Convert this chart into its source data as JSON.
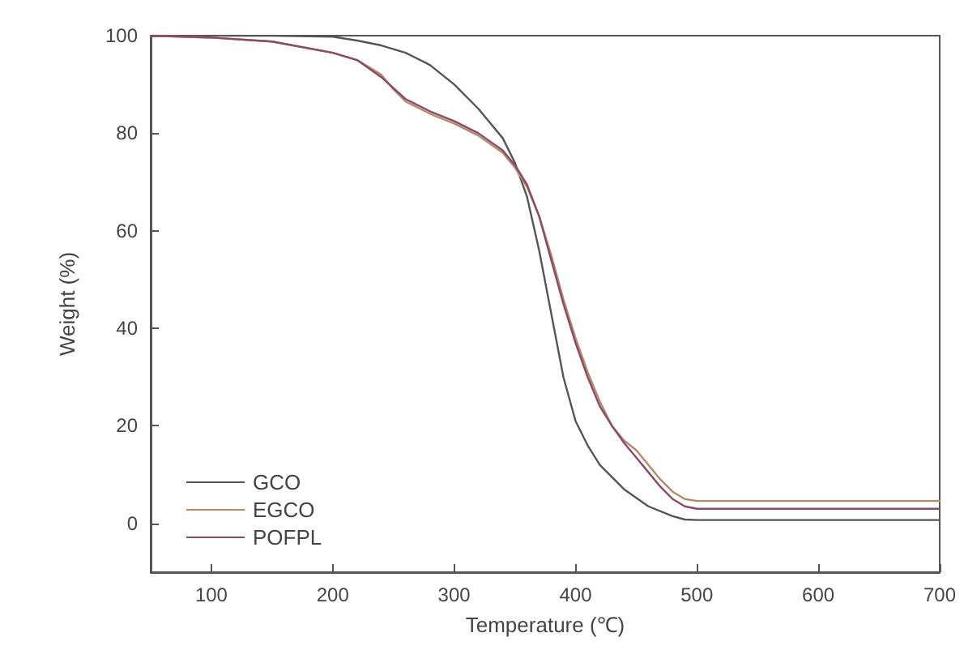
{
  "chart_data": {
    "type": "line",
    "xlabel": "Temperature (℃)",
    "ylabel": "Weight (%)",
    "xlim": [
      50,
      700
    ],
    "xticks": [
      100,
      200,
      300,
      400,
      500,
      600,
      700
    ],
    "ylim": [
      -10,
      100
    ],
    "yticks": [
      0,
      20,
      40,
      60,
      80,
      100
    ],
    "grid": false,
    "legend": "bottom left",
    "marker": "none",
    "line_style": "solid",
    "series": [
      {
        "name": "GCO",
        "color": "#555555",
        "x": [
          50,
          100,
          150,
          200,
          220,
          240,
          260,
          280,
          300,
          320,
          340,
          350,
          360,
          370,
          380,
          390,
          400,
          410,
          420,
          440,
          460,
          480,
          490,
          500,
          600,
          700
        ],
        "values": [
          100,
          100,
          100,
          99.8,
          99,
          98,
          96.5,
          94,
          90,
          85,
          79,
          74,
          67,
          56,
          43,
          30,
          21,
          16,
          12,
          7,
          3.5,
          1.5,
          0.8,
          0.7,
          0.7,
          0.7
        ]
      },
      {
        "name": "EGCO",
        "color": "#b58a6a",
        "x": [
          50,
          100,
          150,
          200,
          220,
          240,
          250,
          260,
          280,
          300,
          320,
          340,
          350,
          360,
          370,
          380,
          390,
          400,
          410,
          420,
          430,
          440,
          450,
          460,
          470,
          480,
          490,
          500,
          600,
          700
        ],
        "values": [
          100,
          99.6,
          98.8,
          96.5,
          95,
          92,
          89,
          86.5,
          84,
          82,
          79.5,
          76,
          73,
          69,
          63,
          55,
          46,
          38,
          31,
          25,
          20,
          17,
          15,
          12,
          9,
          6.5,
          5,
          4.6,
          4.6,
          4.6
        ]
      },
      {
        "name": "POFPL",
        "color": "#8a4a6a",
        "x": [
          50,
          100,
          150,
          200,
          220,
          240,
          260,
          280,
          300,
          320,
          340,
          350,
          360,
          370,
          380,
          390,
          400,
          410,
          420,
          430,
          440,
          450,
          460,
          470,
          480,
          490,
          500,
          600,
          700
        ],
        "values": [
          100,
          99.6,
          98.8,
          96.5,
          95,
          91.5,
          87,
          84.5,
          82.5,
          80,
          76.5,
          73.5,
          69.5,
          63,
          54,
          45,
          37,
          30,
          24,
          20,
          16.5,
          13.5,
          10.5,
          7.5,
          5,
          3.5,
          3,
          3,
          3
        ]
      }
    ]
  }
}
